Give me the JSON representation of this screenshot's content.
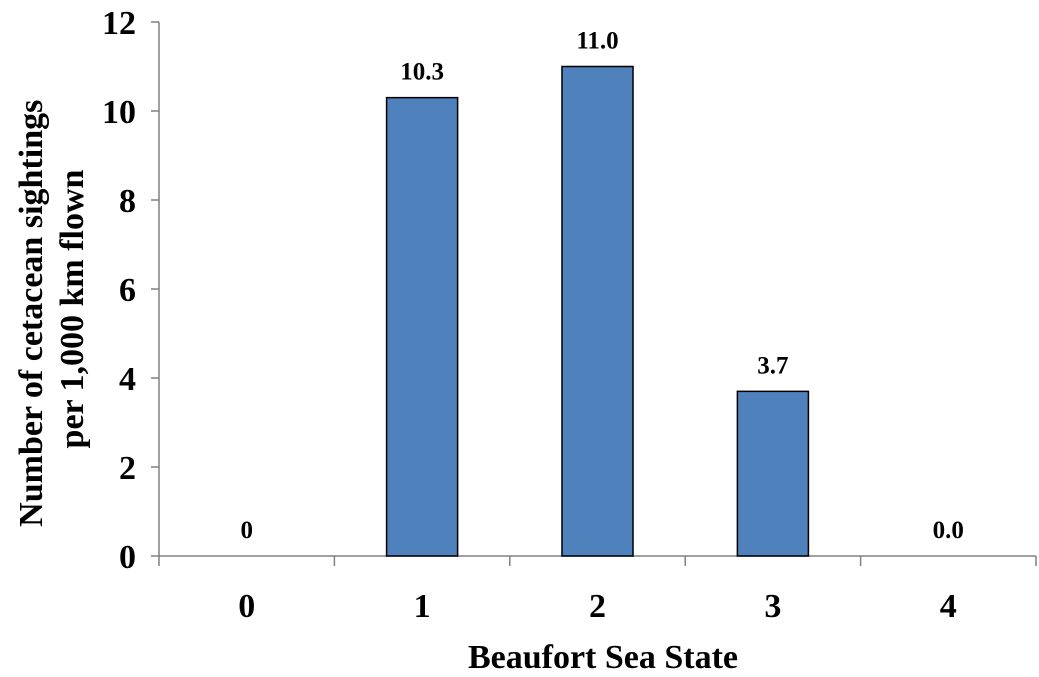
{
  "chart_data": {
    "type": "bar",
    "categories": [
      "0",
      "1",
      "2",
      "3",
      "4"
    ],
    "values": [
      0,
      10.3,
      11.0,
      3.7,
      0.0
    ],
    "data_labels": [
      "0",
      "10.3",
      "11.0",
      "3.7",
      "0.0"
    ],
    "xlabel": "Beaufort Sea State",
    "ylabel_lines": [
      "Number of cetacean sightings",
      "per 1,000 km flown"
    ],
    "ylim": [
      0,
      12
    ],
    "yticks": [
      0,
      2,
      4,
      6,
      8,
      10,
      12
    ],
    "grid": false,
    "legend": "none",
    "bar_color": "#4F81BD",
    "bar_outline_color": "#000000"
  }
}
